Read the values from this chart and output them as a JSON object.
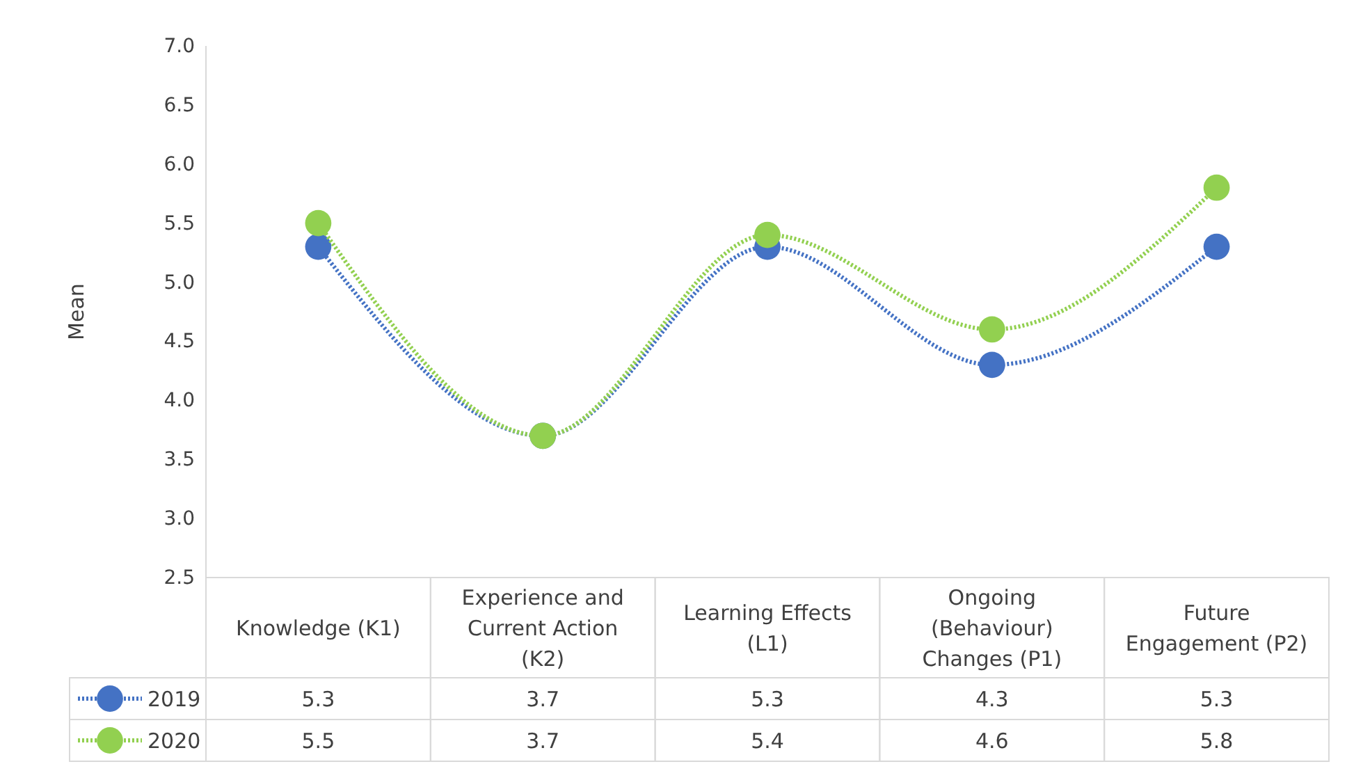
{
  "chart_data": {
    "type": "line",
    "ylabel": "Mean",
    "categories": [
      "Knowledge (K1)",
      "Experience and Current Action (K2)",
      "Learning Effects (L1)",
      "Ongoing (Behaviour) Changes (P1)",
      "Future Engagement (P2)"
    ],
    "series": [
      {
        "name": "2019",
        "color": "#4472c4",
        "values": [
          5.3,
          3.7,
          5.3,
          4.3,
          5.3
        ]
      },
      {
        "name": "2020",
        "color": "#92d050",
        "values": [
          5.5,
          3.7,
          5.4,
          4.6,
          5.8
        ]
      }
    ],
    "ylim": [
      2.5,
      7.0
    ],
    "yticks": [
      {
        "value": 2.5,
        "label": "2.5"
      },
      {
        "value": 3,
        "label": "3.0"
      },
      {
        "value": 3.5,
        "label": "3.5"
      },
      {
        "value": 4,
        "label": "4.0"
      },
      {
        "value": 4.5,
        "label": "4.5"
      },
      {
        "value": 5,
        "label": "5.0"
      },
      {
        "value": 5.5,
        "label": "5.5"
      },
      {
        "value": 6,
        "label": "6.0"
      },
      {
        "value": 6.5,
        "label": "6.5"
      },
      {
        "value": 7,
        "label": "7.0"
      }
    ],
    "grid": false,
    "legend": "bottom",
    "marker": "circle",
    "line_style": "dotted",
    "data_labels": true
  }
}
